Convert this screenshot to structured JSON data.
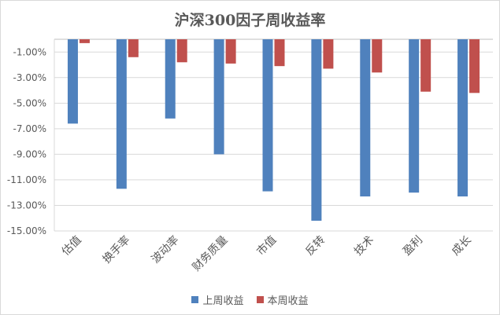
{
  "chart_data": {
    "type": "bar",
    "title": "沪深300因子周收益率",
    "categories": [
      "估值",
      "换手率",
      "波动率",
      "财务质量",
      "市值",
      "反转",
      "技术",
      "盈利",
      "成长"
    ],
    "series": [
      {
        "name": "上周收益",
        "color": "#4f81bd",
        "values": [
          -6.6,
          -11.7,
          -6.2,
          -9.0,
          -11.9,
          -14.2,
          -12.3,
          -12.0,
          -12.3
        ]
      },
      {
        "name": "本周收益",
        "color": "#c0504d",
        "values": [
          -0.3,
          -1.4,
          -1.8,
          -1.9,
          -2.1,
          -2.3,
          -2.6,
          -4.1,
          -4.2
        ]
      }
    ],
    "yticks": [
      "-1.00%",
      "-3.00%",
      "-5.00%",
      "-7.00%",
      "-9.00%",
      "-11.00%",
      "-13.00%",
      "-15.00%"
    ],
    "ytick_values": [
      -1,
      -3,
      -5,
      -7,
      -9,
      -11,
      -13,
      -15
    ],
    "ylim": [
      -15,
      0
    ],
    "grid": true,
    "legend": "bottom"
  }
}
